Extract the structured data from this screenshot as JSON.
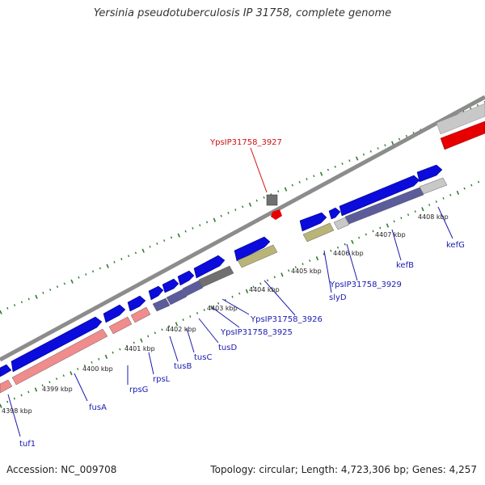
{
  "header": {
    "title": "Yersinia pseudotuberculosis IP 31758, complete genome"
  },
  "footer": {
    "accession": "Accession: NC_009708",
    "summary": "Topology: circular; Length: 4,723,306 bp; Genes: 4,257"
  },
  "colors": {
    "gene_forward": "#0b0bdc",
    "gene_reverse": "#5c5c9c",
    "cds_pink": "#f08c8c",
    "cds_red": "#e60000",
    "cds_khaki": "#b9b478",
    "cds_gray": "#c8c8c8",
    "cds_dark": "#707070",
    "tick_green": "#2e7d2e",
    "backbone": "#8c8c8c",
    "label_blue": "#1a1ab0",
    "label_red": "#d01010"
  },
  "kbp_ticks": [
    "4398 kbp",
    "4399 kbp",
    "4400 kbp",
    "4401 kbp",
    "4402 kbp",
    "4403 kbp",
    "4404 kbp",
    "4405 kbp",
    "4406 kbp",
    "4407 kbp",
    "4408 kbp"
  ],
  "gene_labels": [
    {
      "text": "tuf1",
      "color": "label_blue"
    },
    {
      "text": "fusA",
      "color": "label_blue"
    },
    {
      "text": "rpsG",
      "color": "label_blue"
    },
    {
      "text": "rpsL",
      "color": "label_blue"
    },
    {
      "text": "tusB",
      "color": "label_blue"
    },
    {
      "text": "tusC",
      "color": "label_blue"
    },
    {
      "text": "tusD",
      "color": "label_blue"
    },
    {
      "text": "YpsIP31758_3925",
      "color": "label_blue"
    },
    {
      "text": "YpsIP31758_3926",
      "color": "label_blue"
    },
    {
      "text": "slyD",
      "color": "label_blue"
    },
    {
      "text": "YpsIP31758_3929",
      "color": "label_blue"
    },
    {
      "text": "kefB",
      "color": "label_blue"
    },
    {
      "text": "kefG",
      "color": "label_blue"
    },
    {
      "text": "YpsIP31758_3927",
      "color": "label_red"
    }
  ]
}
